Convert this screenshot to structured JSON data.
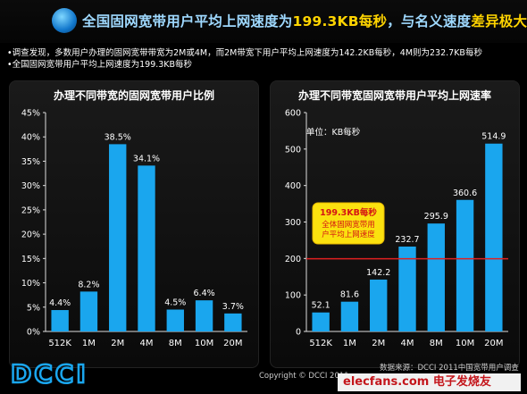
{
  "banner": {
    "title_part1": "全国固网宽带用户平均上网速度为",
    "title_highlight1": "199.3KB每秒",
    "title_part2": "，与名义速度",
    "title_highlight2": "差异极大"
  },
  "notes": [
    "•调查发现，多数用户办理的固网宽带带宽为2M或4M，而2M带宽下用户平均上网速度为142.2KB每秒，4M则为232.7KB每秒",
    "•全国固网宽带用户平均上网速度为199.3KB每秒"
  ],
  "chart_data": [
    {
      "type": "bar",
      "title": "办理不同带宽的固网宽带用户比例",
      "categories": [
        "512K",
        "1M",
        "2M",
        "4M",
        "8M",
        "10M",
        "20M"
      ],
      "values": [
        4.4,
        8.2,
        38.5,
        34.1,
        4.5,
        6.4,
        3.7
      ],
      "value_labels": [
        "4.4%",
        "8.2%",
        "38.5%",
        "34.1%",
        "4.5%",
        "6.4%",
        "3.7%"
      ],
      "ylim": [
        0,
        45
      ],
      "yticks": [
        "0%",
        "5%",
        "10%",
        "15%",
        "20%",
        "25%",
        "30%",
        "35%",
        "40%",
        "45%"
      ],
      "ytick_values": [
        0,
        5,
        10,
        15,
        20,
        25,
        30,
        35,
        40,
        45
      ],
      "bar_color": "#1aa6ee"
    },
    {
      "type": "bar",
      "title": "办理不同带宽固网宽带用户平均上网速率",
      "unit_label": "单位：KB每秒",
      "categories": [
        "512K",
        "1M",
        "2M",
        "4M",
        "8M",
        "10M",
        "20M"
      ],
      "values": [
        52.1,
        81.6,
        142.2,
        232.7,
        295.9,
        360.6,
        514.9
      ],
      "value_labels": [
        "52.1",
        "81.6",
        "142.2",
        "232.7",
        "295.9",
        "360.6",
        "514.9"
      ],
      "ylim": [
        0,
        600
      ],
      "yticks": [
        "0",
        "100",
        "200",
        "300",
        "400",
        "500",
        "600"
      ],
      "ytick_values": [
        0,
        100,
        200,
        300,
        400,
        500,
        600
      ],
      "bar_color": "#1aa6ee",
      "reference_line": {
        "value": 199.3,
        "color": "#e02020"
      },
      "annotation": {
        "title": "199.3KB每秒",
        "lines": [
          "全体固网宽带用",
          "户平均上网速度"
        ]
      }
    }
  ],
  "logo_text": "DCCI",
  "footer": "Copyright © DCCI 2011",
  "source": "数据来源：DCCI 2011中国宽带用户调查",
  "watermark": "elecfans.com 电子发烧友"
}
